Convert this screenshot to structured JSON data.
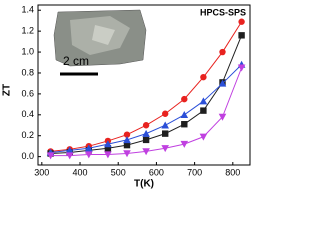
{
  "chart_data": {
    "type": "line",
    "x_label": "T(K)",
    "y_label": "ZT",
    "annotations": [
      "HPCS-SPS",
      "2 cm"
    ],
    "x": [
      323,
      373,
      423,
      473,
      523,
      573,
      623,
      673,
      723,
      773,
      823
    ],
    "series": [
      {
        "color": "#e8221f",
        "marker": "circle",
        "values": [
          0.05,
          0.07,
          0.1,
          0.15,
          0.21,
          0.3,
          0.41,
          0.55,
          0.76,
          1.0,
          1.29
        ]
      },
      {
        "color": "#1f1f1f",
        "marker": "square",
        "values": [
          0.03,
          0.04,
          0.06,
          0.08,
          0.11,
          0.16,
          0.22,
          0.31,
          0.44,
          0.71,
          1.16
        ]
      },
      {
        "color": "#2b4fd8",
        "marker": "triangle-up",
        "values": [
          0.04,
          0.06,
          0.08,
          0.12,
          0.16,
          0.22,
          0.3,
          0.4,
          0.53,
          0.7,
          0.88
        ]
      },
      {
        "color": "#c040e0",
        "marker": "triangle-down",
        "values": [
          0.01,
          0.01,
          0.02,
          0.02,
          0.03,
          0.05,
          0.08,
          0.12,
          0.19,
          0.38,
          0.85
        ]
      }
    ],
    "xlim": [
      290,
      845
    ],
    "xticks": [
      300,
      400,
      500,
      600,
      700,
      800
    ],
    "ylim": [
      -0.08,
      1.45
    ],
    "yticks": [
      {
        "value": 0,
        "label": "0.0"
      },
      {
        "value": 0.2,
        "label": "0.2"
      },
      {
        "value": 0.4,
        "label": "0.4"
      },
      {
        "value": 0.6,
        "label": "0.6"
      },
      {
        "value": 0.8,
        "label": "0.8"
      },
      {
        "value": 1.0,
        "label": "1.0"
      },
      {
        "value": 1.2,
        "label": "1.2"
      },
      {
        "value": 1.4,
        "label": "1.4"
      }
    ]
  }
}
